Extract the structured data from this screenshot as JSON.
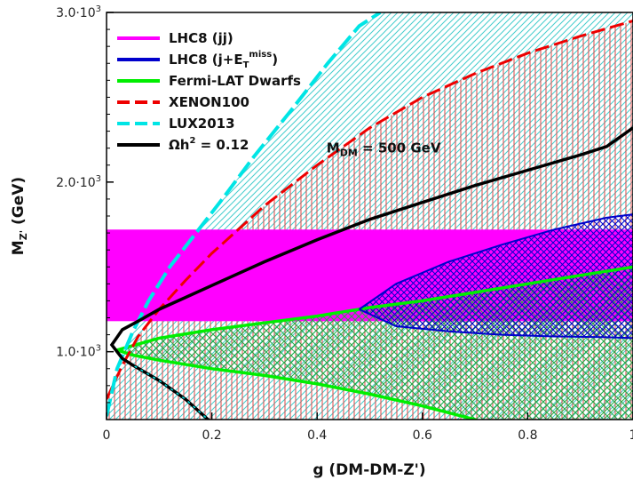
{
  "chart_data": {
    "type": "line",
    "xlabel": "g (DM-DM-Z')",
    "ylabel_main": "M",
    "ylabel_sub": "Z'",
    "ylabel_unit": " (GeV)",
    "xlim": [
      0,
      1
    ],
    "ylim": [
      600,
      3000
    ],
    "x_ticks": [
      {
        "value": 0,
        "label": "0"
      },
      {
        "value": 0.2,
        "label": "0.2"
      },
      {
        "value": 0.4,
        "label": "0.4"
      },
      {
        "value": 0.6,
        "label": "0.6"
      },
      {
        "value": 0.8,
        "label": "0.8"
      },
      {
        "value": 1,
        "label": "1"
      }
    ],
    "y_ticks": [
      {
        "value": 1000,
        "mant": "1.0·10",
        "exp": "3"
      },
      {
        "value": 2000,
        "mant": "2.0·10",
        "exp": "3"
      },
      {
        "value": 3000,
        "mant": "3.0·10",
        "exp": "3"
      }
    ],
    "annotation": {
      "pre": "M",
      "sub": "DM",
      "post": " = 500 GeV",
      "x": 0.6,
      "y": 2200
    },
    "colors": {
      "lhc_jj": "#ff00ff",
      "lhc_jmet": "#0000cc",
      "fermi": "#00ee00",
      "xenon": "#ee0000",
      "lux": "#00e5e5",
      "relic": "#000000",
      "fermi_hatch": "#22aa44",
      "xenon_hatch": "#dd4444",
      "lux_hatch": "#44cccc"
    },
    "legend": [
      {
        "key": "lhc_jj",
        "label": "LHC8 (jj)",
        "style": "solid"
      },
      {
        "key": "lhc_jmet",
        "label_pre": "LHC8 (j+E",
        "label_sub": "T",
        "label_sup": "miss",
        "label_post": ")",
        "style": "solid"
      },
      {
        "key": "fermi",
        "label": "Fermi-LAT Dwarfs",
        "style": "solid"
      },
      {
        "key": "xenon",
        "label": "XENON100",
        "style": "dashed"
      },
      {
        "key": "lux",
        "label": "LUX2013",
        "style": "dashed"
      },
      {
        "key": "relic",
        "label": "Ωh² = 0.12",
        "label_pre": "Ωh",
        "label_sup": "2",
        "label_post": " = 0.12",
        "style": "solid"
      }
    ],
    "series": {
      "lhc_jj_band": {
        "x": [
          0,
          1
        ],
        "y_low": 1180,
        "y_high": 1720
      },
      "lux_boundary": {
        "x": [
          0.0,
          0.02,
          0.05,
          0.08,
          0.12,
          0.17,
          0.22,
          0.28,
          0.35,
          0.42,
          0.48,
          0.52
        ],
        "y": [
          620,
          900,
          1120,
          1300,
          1500,
          1700,
          1900,
          2150,
          2420,
          2700,
          2920,
          3000
        ]
      },
      "xenon_boundary": {
        "x": [
          0.0,
          0.03,
          0.06,
          0.1,
          0.15,
          0.2,
          0.25,
          0.3,
          0.4,
          0.5,
          0.6,
          0.7,
          0.8,
          0.9,
          1.0
        ],
        "y": [
          720,
          920,
          1090,
          1250,
          1420,
          1580,
          1720,
          1860,
          2100,
          2320,
          2500,
          2640,
          2760,
          2860,
          2950
        ]
      },
      "fermi_upper": {
        "x": [
          0.02,
          0.1,
          0.2,
          0.3,
          0.4,
          0.5,
          0.6,
          0.7,
          0.8,
          0.9,
          1.0
        ],
        "y": [
          1010,
          1080,
          1130,
          1170,
          1210,
          1260,
          1300,
          1350,
          1400,
          1450,
          1500
        ]
      },
      "fermi_lower": {
        "x": [
          0.02,
          0.05,
          0.1,
          0.2,
          0.3,
          0.4,
          0.5,
          0.6,
          0.7,
          0.75,
          0.8,
          0.82,
          0.9,
          1.0
        ],
        "y": [
          1010,
          980,
          950,
          900,
          860,
          810,
          750,
          680,
          600,
          530,
          440,
          420,
          420,
          420
        ]
      },
      "lhc_jmet_upper": {
        "x": [
          0.48,
          0.55,
          0.65,
          0.75,
          0.85,
          0.95,
          1.0
        ],
        "y": [
          1250,
          1400,
          1530,
          1630,
          1720,
          1790,
          1810
        ]
      },
      "lhc_jmet_lower": {
        "x": [
          0.48,
          0.55,
          0.65,
          0.75,
          0.85,
          0.95,
          1.0
        ],
        "y": [
          1250,
          1150,
          1120,
          1100,
          1090,
          1085,
          1080
        ]
      },
      "relic_curve": {
        "x": [
          0.24,
          0.2,
          0.15,
          0.1,
          0.05,
          0.03,
          0.01,
          0.03,
          0.06,
          0.1,
          0.15,
          0.2,
          0.3,
          0.4,
          0.5,
          0.6,
          0.7,
          0.8,
          0.9,
          0.95,
          1.0
        ],
        "y": [
          420,
          580,
          720,
          830,
          920,
          960,
          1040,
          1130,
          1180,
          1250,
          1320,
          1390,
          1530,
          1660,
          1780,
          1880,
          1980,
          2070,
          2160,
          2210,
          2320
        ]
      }
    }
  }
}
